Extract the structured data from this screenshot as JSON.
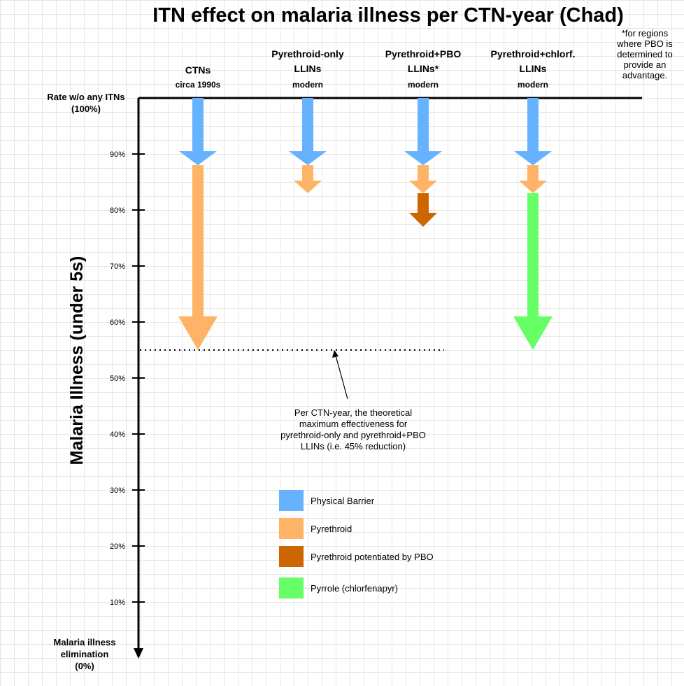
{
  "chart_data": {
    "type": "bar",
    "title": "ITN effect on malaria illness per CTN-year (Chad)",
    "ylabel": "Malaria Illness (under 5s)",
    "ylim": [
      0,
      100
    ],
    "yticks": [
      "10%",
      "20%",
      "30%",
      "40%",
      "50%",
      "60%",
      "70%",
      "80%",
      "90%"
    ],
    "y_top_label": [
      "Rate w/o any ITNs",
      "(100%)"
    ],
    "y_bottom_label": [
      "Malaria illness",
      "elimination",
      "(0%)"
    ],
    "footnote": [
      "*for regions",
      "where PBO is",
      "determined to",
      "provide an",
      "advantage."
    ],
    "columns": [
      {
        "header": [
          "CTNs"
        ],
        "sub": "circa 1990s",
        "segments": [
          {
            "series": "Physical Barrier",
            "from": 100,
            "to": 88
          },
          {
            "series": "Pyrethroid",
            "from": 88,
            "to": 55
          }
        ]
      },
      {
        "header": [
          "Pyrethroid-only",
          "LLINs"
        ],
        "sub": "modern",
        "segments": [
          {
            "series": "Physical Barrier",
            "from": 100,
            "to": 88
          },
          {
            "series": "Pyrethroid",
            "from": 88,
            "to": 83
          }
        ]
      },
      {
        "header": [
          "Pyrethroid+PBO",
          "LLINs*"
        ],
        "sub": "modern",
        "segments": [
          {
            "series": "Physical Barrier",
            "from": 100,
            "to": 88
          },
          {
            "series": "Pyrethroid",
            "from": 88,
            "to": 83
          },
          {
            "series": "Pyrethroid potentiated by PBO",
            "from": 83,
            "to": 77
          }
        ]
      },
      {
        "header": [
          "Pyrethroid+chlorf.",
          "LLINs"
        ],
        "sub": "modern",
        "segments": [
          {
            "series": "Physical Barrier",
            "from": 100,
            "to": 88
          },
          {
            "series": "Pyrethroid",
            "from": 88,
            "to": 83
          },
          {
            "series": "Pyrrole (chlorfenapyr)",
            "from": 83,
            "to": 55
          }
        ]
      }
    ],
    "reference_line": {
      "value": 55
    },
    "annotation": [
      "Per CTN-year, the theoretical",
      "maximum effectiveness for",
      "pyrethroid-only and pyrethroid+PBO",
      "LLINs (i.e. 45% reduction)"
    ],
    "series": [
      {
        "name": "Physical Barrier",
        "color": "#66b2ff"
      },
      {
        "name": "Pyrethroid",
        "color": "#ffb366"
      },
      {
        "name": "Pyrethroid potentiated by PBO",
        "color": "#cc6600"
      },
      {
        "name": "Pyrrole (chlorfenapyr)",
        "color": "#66ff66"
      }
    ]
  }
}
